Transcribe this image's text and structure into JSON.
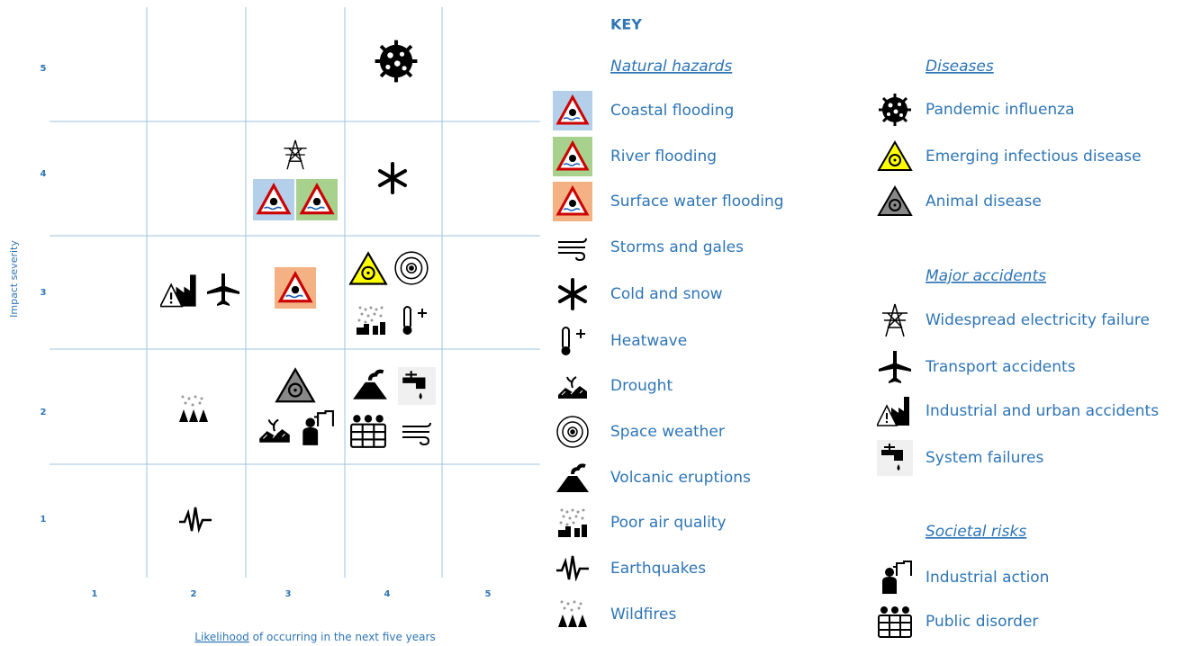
{
  "y_axis": {
    "title": "Impact severity",
    "labels": [
      "5",
      "4",
      "3",
      "2",
      "1"
    ]
  },
  "x_axis": {
    "title_underlined": "Likelihood",
    "title_rest": " of occurring in the next five years",
    "labels": [
      "1",
      "2",
      "3",
      "4",
      "5"
    ]
  },
  "key": {
    "title": "KEY",
    "groups": [
      {
        "title": "Natural hazards",
        "items": [
          "Coastal flooding",
          "River flooding",
          "Surface water flooding",
          "Storms and gales",
          "Cold and snow",
          "Heatwave",
          "Drought",
          "Space weather",
          "Volcanic eruptions",
          "Poor air quality",
          "Earthquakes",
          "Wildfires"
        ]
      },
      {
        "title": "Diseases",
        "items": [
          "Pandemic influenza",
          "Emerging infectious disease",
          "Animal disease"
        ]
      },
      {
        "title": "Major accidents",
        "items": [
          "Widespread electricity failure",
          "Transport accidents",
          "Industrial and urban accidents",
          "System failures"
        ]
      },
      {
        "title": "Societal risks",
        "items": [
          "Industrial action",
          "Public disorder"
        ]
      }
    ]
  }
}
